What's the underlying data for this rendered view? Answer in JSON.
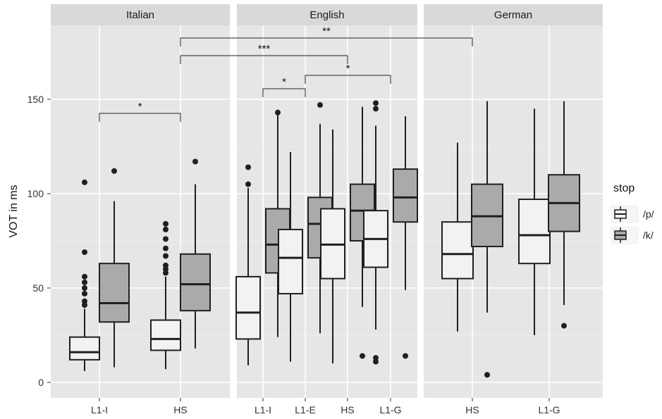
{
  "chart_data": {
    "type": "box",
    "ylabel": "VOT in ms",
    "xlabel": "",
    "ylim": [
      -5,
      180
    ],
    "yticks": [
      0,
      50,
      100,
      150
    ],
    "grid": true,
    "legend": {
      "title": "stop",
      "placement": "right",
      "entries": [
        {
          "label": "/p/",
          "color": "#f2f2f2"
        },
        {
          "label": "/k/",
          "color": "#aaaaaa"
        }
      ]
    },
    "facets": [
      {
        "label": "Italian",
        "categories": [
          "L1-I",
          "HS"
        ],
        "boxes": [
          {
            "category": "L1-I",
            "stop": "/p/",
            "min": 6,
            "q1": 12,
            "median": 16,
            "q3": 24,
            "max": 39,
            "outliers": [
              41,
              43,
              47,
              50,
              53,
              56,
              69,
              106
            ]
          },
          {
            "category": "L1-I",
            "stop": "/k/",
            "min": 8,
            "q1": 32,
            "median": 42,
            "q3": 63,
            "max": 96,
            "outliers": [
              112
            ]
          },
          {
            "category": "HS",
            "stop": "/p/",
            "min": 7,
            "q1": 17,
            "median": 23,
            "q3": 33,
            "max": 56,
            "outliers": [
              58,
              60,
              62,
              67,
              71,
              76,
              81,
              84
            ]
          },
          {
            "category": "HS",
            "stop": "/k/",
            "min": 18,
            "q1": 38,
            "median": 52,
            "q3": 68,
            "max": 105,
            "outliers": [
              117
            ]
          }
        ]
      },
      {
        "label": "English",
        "categories": [
          "L1-I",
          "L1-E",
          "HS",
          "L1-G"
        ],
        "boxes": [
          {
            "category": "L1-I",
            "stop": "/p/",
            "min": 9,
            "q1": 23,
            "median": 37,
            "q3": 56,
            "max": 103,
            "outliers": [
              105,
              114
            ]
          },
          {
            "category": "L1-I",
            "stop": "/k/",
            "min": 24,
            "q1": 58,
            "median": 73,
            "q3": 92,
            "max": 142,
            "outliers": [
              143
            ]
          },
          {
            "category": "L1-E",
            "stop": "/p/",
            "min": 11,
            "q1": 47,
            "median": 66,
            "q3": 81,
            "max": 122,
            "outliers": []
          },
          {
            "category": "L1-E",
            "stop": "/k/",
            "min": 26,
            "q1": 66,
            "median": 84,
            "q3": 98,
            "max": 137,
            "outliers": [
              147
            ]
          },
          {
            "category": "HS",
            "stop": "/p/",
            "min": 10,
            "q1": 55,
            "median": 73,
            "q3": 92,
            "max": 134,
            "outliers": []
          },
          {
            "category": "HS",
            "stop": "/k/",
            "min": 40,
            "q1": 75,
            "median": 91,
            "q3": 105,
            "max": 146,
            "outliers": [
              14
            ]
          },
          {
            "category": "L1-G",
            "stop": "/p/",
            "min": 28,
            "q1": 61,
            "median": 76,
            "q3": 91,
            "max": 136,
            "outliers": [
              11,
              13,
              145,
              148
            ]
          },
          {
            "category": "L1-G",
            "stop": "/k/",
            "min": 49,
            "q1": 85,
            "median": 98,
            "q3": 113,
            "max": 141,
            "outliers": [
              14
            ]
          }
        ]
      },
      {
        "label": "German",
        "categories": [
          "HS",
          "L1-G"
        ],
        "boxes": [
          {
            "category": "HS",
            "stop": "/p/",
            "min": 27,
            "q1": 55,
            "median": 68,
            "q3": 85,
            "max": 127,
            "outliers": []
          },
          {
            "category": "HS",
            "stop": "/k/",
            "min": 37,
            "q1": 72,
            "median": 88,
            "q3": 105,
            "max": 149,
            "outliers": [
              4
            ]
          },
          {
            "category": "L1-G",
            "stop": "/p/",
            "min": 25,
            "q1": 63,
            "median": 78,
            "q3": 97,
            "max": 145,
            "outliers": []
          },
          {
            "category": "L1-G",
            "stop": "/k/",
            "min": 41,
            "q1": 80,
            "median": 95,
            "q3": 110,
            "max": 149,
            "outliers": [
              30
            ]
          }
        ]
      }
    ],
    "significance": [
      {
        "from": "Italian:L1-I",
        "to": "Italian:HS",
        "label": "*"
      },
      {
        "from": "English:L1-I",
        "to": "English:L1-E",
        "label": "*"
      },
      {
        "from": "English:L1-E",
        "to": "English:L1-G",
        "label": "*"
      },
      {
        "from": "Italian:HS",
        "to": "English:HS",
        "label": "***"
      },
      {
        "from": "Italian:HS",
        "to": "German:HS",
        "label": "**"
      }
    ]
  }
}
